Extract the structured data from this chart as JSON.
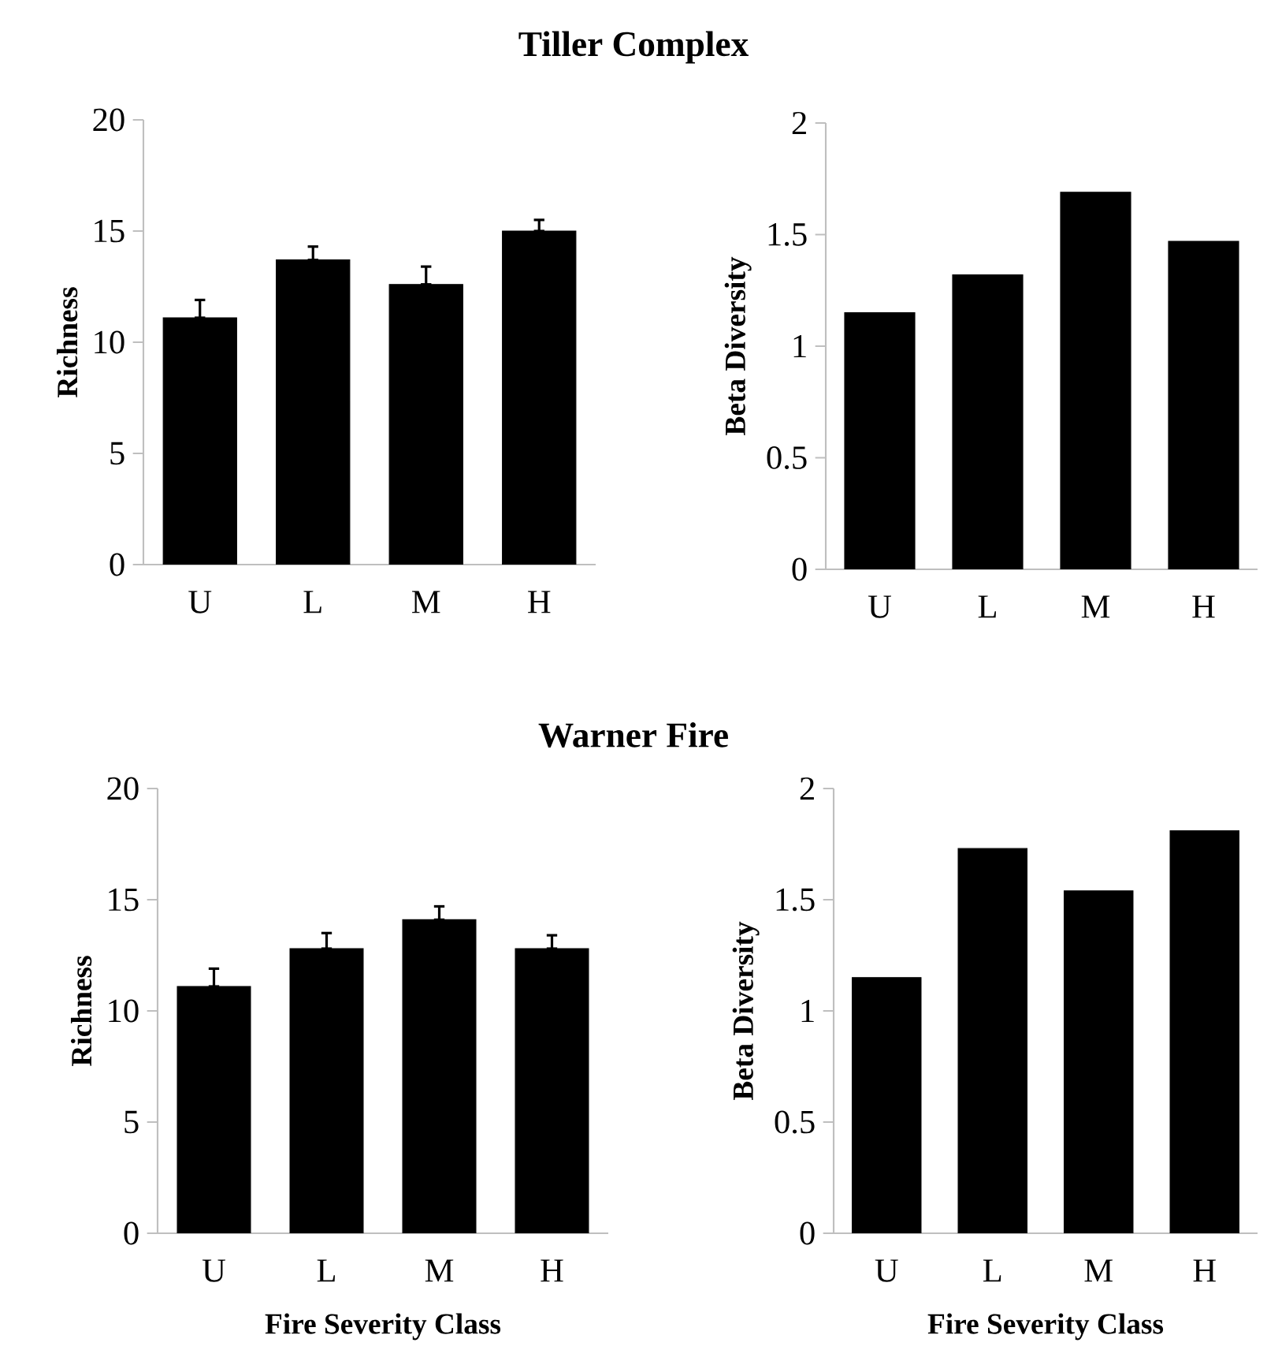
{
  "chart_data": [
    {
      "type": "bar",
      "title": "Tiller Complex",
      "ylabel": "Richness",
      "categories": [
        "U",
        "L",
        "M",
        "H"
      ],
      "values": [
        11.1,
        13.7,
        12.6,
        15.0
      ],
      "errors": [
        [
          11.1,
          11.9
        ],
        [
          13.7,
          14.3
        ],
        [
          12.6,
          13.4
        ],
        [
          15.0,
          15.5
        ]
      ],
      "color": "#000000",
      "ylim": [
        0,
        20
      ],
      "yticks": [
        0,
        5,
        10,
        15,
        20
      ]
    },
    {
      "type": "bar",
      "ylabel": "Beta Diversity",
      "categories": [
        "U",
        "L",
        "M",
        "H"
      ],
      "values": [
        1.15,
        1.32,
        1.69,
        1.47
      ],
      "color": "#000000",
      "ylim": [
        0,
        2
      ],
      "yticks": [
        0,
        0.5,
        1,
        1.5,
        2
      ]
    },
    {
      "type": "bar",
      "title": "Warner Fire",
      "ylabel": "Richness",
      "xlabel": "Fire Severity Class",
      "categories": [
        "U",
        "L",
        "M",
        "H"
      ],
      "values": [
        11.1,
        12.8,
        14.1,
        12.8
      ],
      "errors": [
        [
          11.1,
          11.9
        ],
        [
          12.8,
          13.5
        ],
        [
          14.1,
          14.7
        ],
        [
          12.8,
          13.4
        ]
      ],
      "color": "#000000",
      "ylim": [
        0,
        20
      ],
      "yticks": [
        0,
        5,
        10,
        15,
        20
      ]
    },
    {
      "type": "bar",
      "ylabel": "Beta Diversity",
      "xlabel": "Fire Severity Class",
      "categories": [
        "U",
        "L",
        "M",
        "H"
      ],
      "values": [
        1.15,
        1.73,
        1.54,
        1.81
      ],
      "color": "#000000",
      "ylim": [
        0,
        2
      ],
      "yticks": [
        0,
        0.5,
        1,
        1.5,
        2
      ]
    }
  ]
}
